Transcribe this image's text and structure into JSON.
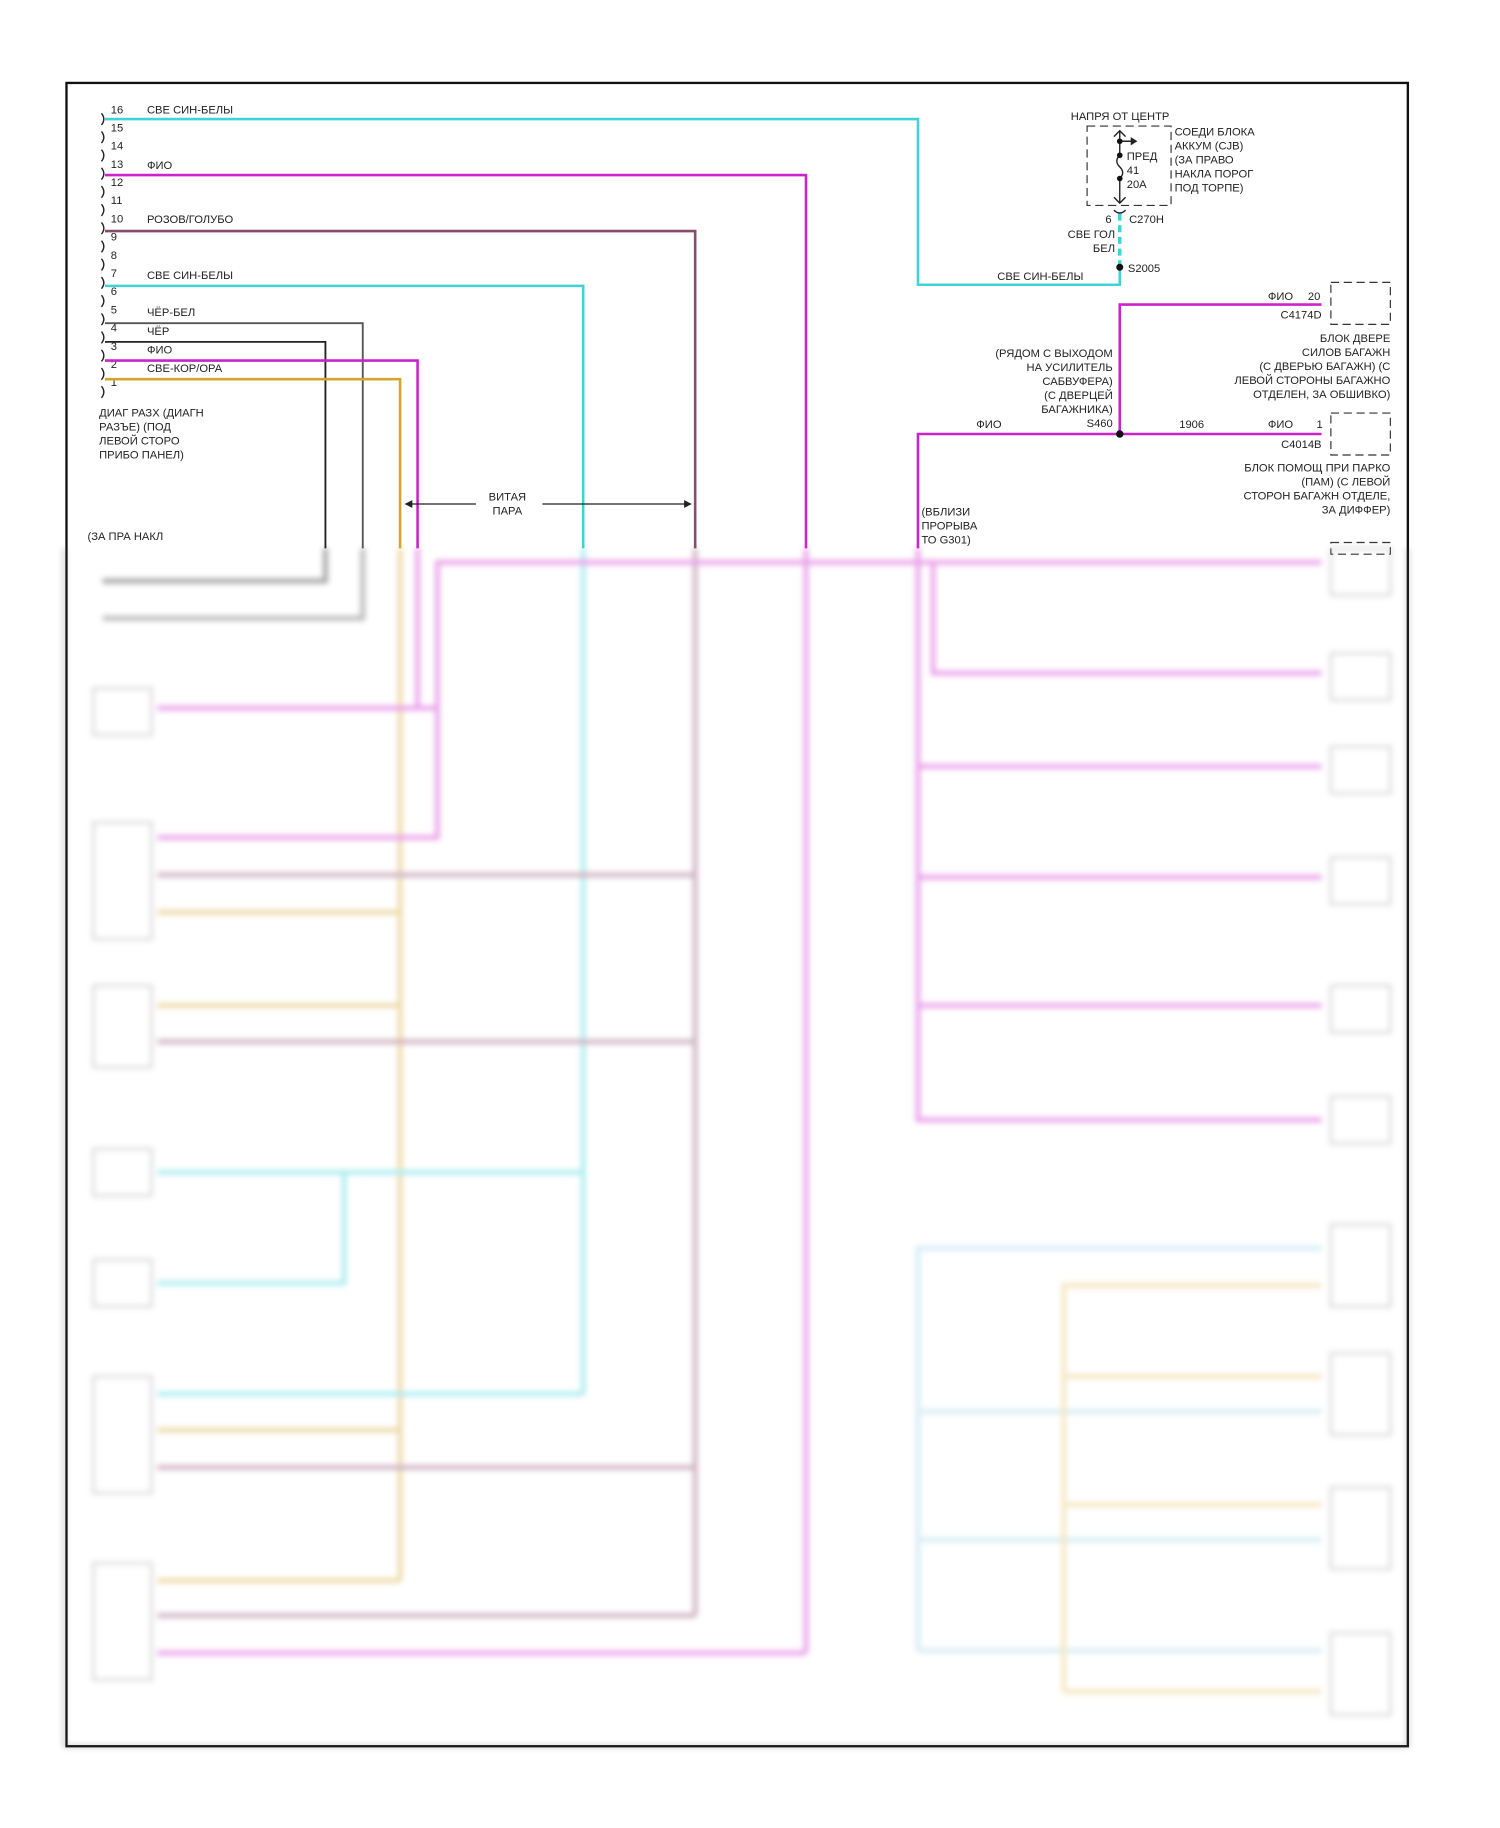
{
  "colors": {
    "cyan": "#3fd3d8",
    "magenta": "#cc22cc",
    "purple": "#8a4a6a",
    "black": "#222222",
    "darkgrey": "#555555",
    "gold": "#d4a52a"
  },
  "diag_connector": {
    "pins": [
      "16",
      "15",
      "14",
      "13",
      "12",
      "11",
      "10",
      "9",
      "8",
      "7",
      "6",
      "5",
      "4",
      "3",
      "2",
      "1"
    ],
    "wires": {
      "p16": "СВЕ СИН-БЕЛЫ",
      "p13": "ФИО",
      "p10": "РОЗОВ/ГОЛУБО",
      "p7": "СВЕ СИН-БЕЛЫ",
      "p5": "ЧЁР-БЕЛ",
      "p4": "ЧЁР",
      "p3": "ФИО",
      "p2": "СВЕ-КОР/ОРА"
    },
    "label": [
      "ДИАГ РАЗХ (ДИАГН",
      "РАЗЪЕ) (ПОД",
      "ЛЕВОЙ СТОРО",
      "ПРИБО ПАНЕЛ)"
    ]
  },
  "twisted_pair": [
    "ВИТАЯ",
    "ПАРА"
  ],
  "ground_note": "(ЗА ПРА НАКЛ",
  "cjb": {
    "title": "НАПРЯ ОТ ЦЕНТР",
    "fuse": [
      "ПРЕД",
      "41",
      "20A"
    ],
    "label": [
      "СОЕДИ БЛОКА",
      "АККУМ (CJB)",
      "(ЗА ПРАВО",
      "НАКЛА ПОРОГ",
      "ПОД ТОРПЕ)"
    ],
    "pin": "6",
    "connector": "C270H",
    "wire": [
      "СВЕ ГОЛ",
      "БЕЛ"
    ],
    "splice": "S2005",
    "splice_wire": "СВЕ СИН-БЕЛЫ"
  },
  "s460": {
    "note": [
      "(РЯДОМ С ВЫХОДОМ",
      "НА УСИЛИТЕЛЬ",
      "САБВУФЕРА)",
      "(С ДВЕРЦЕЙ",
      "БАГАЖНИКА)"
    ],
    "name": "S460",
    "left_wire": "ФИО",
    "circuit": "1906"
  },
  "liftgate_module": {
    "wire": "ФИО",
    "pin": "20",
    "connector": "C4174D",
    "label": [
      "БЛОК ДВЕРЕ",
      "СИЛОВ БАГАЖН",
      "(С ДВЕРЬЮ БАГАЖН) (С",
      "ЛЕВОЙ СТОРОНЫ БАГАЖНО",
      "ОТДЕЛЕН, ЗА ОБШИВКО)"
    ]
  },
  "pam_module": {
    "wire": "ФИО",
    "pin": "1",
    "connector": "C4014B",
    "label": [
      "БЛОК ПОМОЩ ПРИ ПАРКО",
      "(ПАМ) (С ЛЕВОЙ",
      "СТОРОН БАГАЖН ОТДЕЛЕ,",
      "ЗА ДИФФЕР)"
    ]
  },
  "g301_note": [
    "(ВБЛИЗИ",
    "ПРОРЫВА",
    "ТО G301)"
  ]
}
